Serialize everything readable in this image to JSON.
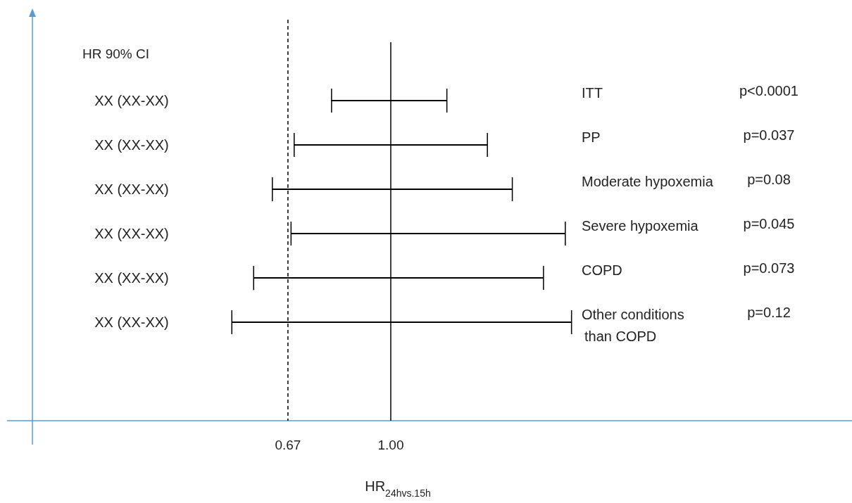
{
  "chart_data": {
    "type": "bar",
    "orientation": "horizontal",
    "xlabel": "HR$_{24hvs.15h}$",
    "categories": [
      "ITT",
      "PP",
      "Moderate hypoxemia",
      "Severe hypoxemia",
      "COPD",
      "Other conditions than COPD"
    ],
    "base": [
      0.81,
      0.69,
      0.62,
      0.68,
      0.56,
      0.49
    ],
    "values": [
      0.37,
      0.62,
      0.77,
      0.88,
      0.93,
      1.09
    ],
    "value_labels": [
      "XX (XX-XX)",
      "XX (XX-XX)",
      "XX (XX-XX)",
      "XX (XX-XX)",
      "XX (XX-XX)",
      "XX (XX-XX)"
    ],
    "color": "#000000",
    "xlim": [
      -0.15,
      2.48
    ],
    "xticks": [
      0.67,
      {
        "value": 1,
        "label": "1.00"
      }
    ],
    "ref_lines": [
      {
        "axis": "x",
        "value": 0.67,
        "color": "#000000",
        "line_style": "dashed"
      },
      {
        "axis": "x",
        "value": 1,
        "color": "#000000",
        "line_style": "solid"
      }
    ],
    "annotations": [
      "HR 90% CI",
      "p<0.0001",
      "p=0.037",
      "p=0.08",
      "p=0.045",
      "p=0.073",
      "p=0.12"
    ]
  }
}
